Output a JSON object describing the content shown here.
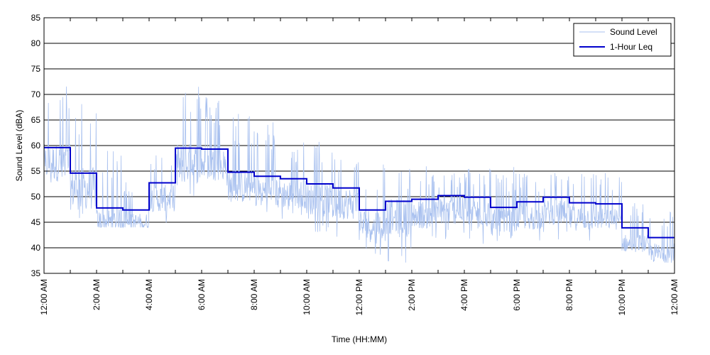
{
  "chart_data": {
    "type": "line",
    "title": "",
    "xlabel": "Time (HH:MM)",
    "ylabel": "Sound Level (dBA)",
    "ylim": [
      35,
      85
    ],
    "xlim": [
      "12:00 AM",
      "12:00 AM"
    ],
    "grid": "horizontal",
    "legend_position": "top-right",
    "y_ticks": [
      "35",
      "40",
      "45",
      "50",
      "55",
      "60",
      "65",
      "70",
      "75",
      "80",
      "85"
    ],
    "x_ticks": [
      "12:00 AM",
      "2:00 AM",
      "4:00 AM",
      "6:00 AM",
      "8:00 AM",
      "10:00 AM",
      "12:00 PM",
      "2:00 PM",
      "4:00 PM",
      "6:00 PM",
      "8:00 PM",
      "10:00 PM",
      "12:00 AM"
    ],
    "series": [
      {
        "name": "Sound Level",
        "color": "#a9c1ef",
        "style": "thin-line",
        "hourly_envelope": [
          {
            "hour": 0,
            "min": 51,
            "max": 72
          },
          {
            "hour": 1,
            "min": 45,
            "max": 69
          },
          {
            "hour": 2,
            "min": 44,
            "max": 59
          },
          {
            "hour": 3,
            "min": 44,
            "max": 54
          },
          {
            "hour": 4,
            "min": 44,
            "max": 59
          },
          {
            "hour": 5,
            "min": 50,
            "max": 73
          },
          {
            "hour": 6,
            "min": 52,
            "max": 70
          },
          {
            "hour": 7,
            "min": 49,
            "max": 67
          },
          {
            "hour": 8,
            "min": 47,
            "max": 65
          },
          {
            "hour": 9,
            "min": 45,
            "max": 61
          },
          {
            "hour": 10,
            "min": 43,
            "max": 61
          },
          {
            "hour": 11,
            "min": 41,
            "max": 59
          },
          {
            "hour": 12,
            "min": 38,
            "max": 57
          },
          {
            "hour": 13,
            "min": 36,
            "max": 56
          },
          {
            "hour": 14,
            "min": 40,
            "max": 56
          },
          {
            "hour": 15,
            "min": 40,
            "max": 55
          },
          {
            "hour": 16,
            "min": 40,
            "max": 56
          },
          {
            "hour": 17,
            "min": 41,
            "max": 56
          },
          {
            "hour": 18,
            "min": 41,
            "max": 55
          },
          {
            "hour": 19,
            "min": 41,
            "max": 55
          },
          {
            "hour": 20,
            "min": 41,
            "max": 55
          },
          {
            "hour": 21,
            "min": 43,
            "max": 55
          },
          {
            "hour": 22,
            "min": 39,
            "max": 49
          },
          {
            "hour": 23,
            "min": 37,
            "max": 48
          }
        ]
      },
      {
        "name": "1-Hour Leq",
        "color": "#0000cc",
        "style": "step",
        "x": [
          "12:00 AM",
          "1:00 AM",
          "2:00 AM",
          "3:00 AM",
          "4:00 AM",
          "5:00 AM",
          "6:00 AM",
          "7:00 AM",
          "8:00 AM",
          "9:00 AM",
          "10:00 AM",
          "11:00 AM",
          "12:00 PM",
          "1:00 PM",
          "2:00 PM",
          "3:00 PM",
          "4:00 PM",
          "5:00 PM",
          "6:00 PM",
          "7:00 PM",
          "8:00 PM",
          "9:00 PM",
          "10:00 PM",
          "11:00 PM"
        ],
        "values": [
          59.6,
          54.6,
          47.8,
          47.4,
          52.7,
          59.5,
          59.3,
          54.8,
          54.0,
          53.5,
          52.5,
          51.7,
          47.4,
          49.1,
          49.5,
          50.2,
          49.9,
          47.9,
          49.0,
          49.9,
          48.8,
          48.6,
          43.9,
          42.0
        ]
      }
    ]
  }
}
